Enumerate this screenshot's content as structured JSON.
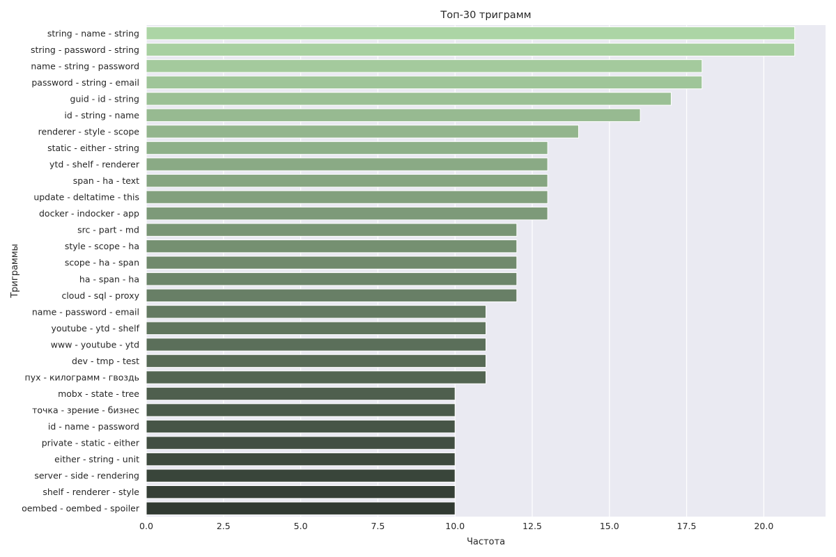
{
  "chart_data": {
    "type": "bar",
    "orientation": "horizontal",
    "title": "Топ-30 триграмм",
    "xlabel": "Частота",
    "ylabel": "Триграммы",
    "xlim": [
      0,
      22
    ],
    "xticks": [
      "0.0",
      "2.5",
      "5.0",
      "7.5",
      "10.0",
      "12.5",
      "15.0",
      "17.5",
      "20.0"
    ],
    "grid": true,
    "legend": "none",
    "colors": {
      "background": "#eaeaf2",
      "gradient_start": "#acd5a5",
      "gradient_end": "#313a32"
    },
    "categories": [
      "string - name - string",
      "string - password - string",
      "name - string - password",
      "password - string - email",
      "guid - id - string",
      "id - string - name",
      "renderer - style - scope",
      "static - either - string",
      "ytd - shelf - renderer",
      "span - ha - text",
      "update - deltatime - this",
      "docker - indocker - app",
      "src - part - md",
      "style - scope - ha",
      "scope - ha - span",
      "ha - span - ha",
      "cloud - sql - proxy",
      "name - password - email",
      "youtube - ytd - shelf",
      "www - youtube - ytd",
      "dev - tmp - test",
      "пух - килограмм - гвоздь",
      "mobx - state - tree",
      "точка - зрение - бизнес",
      "id - name - password",
      "private - static - either",
      "either - string - unit",
      "server - side - rendering",
      "shelf - renderer - style",
      "oembed - oembed - spoiler"
    ],
    "values": [
      21,
      21,
      18,
      18,
      17,
      16,
      14,
      13,
      13,
      13,
      13,
      13,
      12,
      12,
      12,
      12,
      12,
      11,
      11,
      11,
      11,
      11,
      10,
      10,
      10,
      10,
      10,
      10,
      10,
      10
    ]
  }
}
